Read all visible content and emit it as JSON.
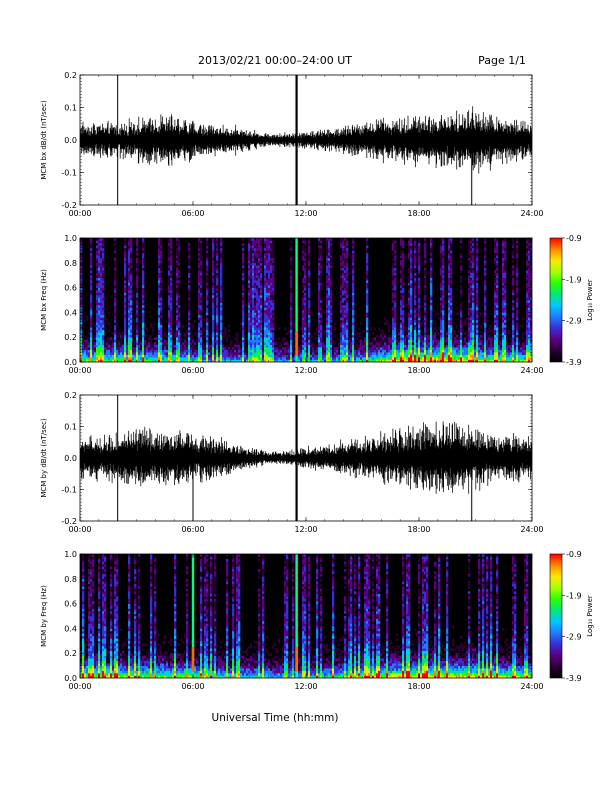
{
  "header": {
    "title": "2013/02/21  00:00–24:00 UT",
    "page": "Page 1/1"
  },
  "colors": {
    "trace": "#000000",
    "spectrogram_background": "#000000",
    "colormap": [
      "#000000",
      "#2a0033",
      "#5a0080",
      "#3a2dd6",
      "#1f7cff",
      "#00c8ff",
      "#00e87a",
      "#2bff00",
      "#a8ff00",
      "#ffe600",
      "#ff8800",
      "#ff0000"
    ]
  },
  "x_axis": {
    "tick_labels": [
      "00:00",
      "06:00",
      "12:00",
      "18:00",
      "24:00"
    ],
    "title": "Universal Time (hh:mm)"
  },
  "chart_data": [
    {
      "type": "line",
      "ylabel": "MCM bx dB/dt (nT/sec)",
      "xlim": [
        0,
        24
      ],
      "ylim": [
        -0.2,
        0.2
      ],
      "yticks": [
        "0.2",
        "0.1",
        "0.0",
        "-0.1",
        "-0.2"
      ],
      "envelope": {
        "x_hours": [
          0,
          1,
          2,
          3,
          4,
          5,
          6,
          7,
          8,
          9,
          10,
          11,
          12,
          13,
          14,
          15,
          16,
          17,
          18,
          19,
          20,
          21,
          22,
          23,
          24
        ],
        "amplitude": [
          0.05,
          0.05,
          0.045,
          0.06,
          0.07,
          0.07,
          0.055,
          0.045,
          0.04,
          0.03,
          0.02,
          0.02,
          0.025,
          0.03,
          0.04,
          0.05,
          0.06,
          0.06,
          0.07,
          0.075,
          0.08,
          0.09,
          0.07,
          0.06,
          0.05
        ]
      },
      "spikes": [
        {
          "x": 2.0,
          "ymin": -0.2,
          "ymax": 0.2
        },
        {
          "x": 11.5,
          "ymin": -0.2,
          "ymax": 0.2
        },
        {
          "x": 20.8,
          "ymin": -0.2,
          "ymax": 0.03
        }
      ]
    },
    {
      "type": "heatmap",
      "ylabel": "MCM bx Freq (Hz)",
      "xlim": [
        0,
        24
      ],
      "ylim": [
        0,
        1.0
      ],
      "yticks": [
        "1.0",
        "0.8",
        "0.6",
        "0.4",
        "0.2",
        "0.0"
      ],
      "colorbar": {
        "label": "Log₁₀ Power",
        "ticks": [
          "-0.9",
          "-1.9",
          "-2.9",
          "-3.9"
        ],
        "range": [
          -3.9,
          -0.9
        ]
      },
      "activity_by_hour": [
        0.5,
        0.45,
        0.5,
        0.45,
        0.45,
        0.45,
        0.4,
        0.35,
        0.35,
        0.3,
        0.3,
        0.3,
        0.3,
        0.3,
        0.35,
        0.4,
        0.5,
        0.6,
        0.65,
        0.65,
        0.6,
        0.55,
        0.5,
        0.45,
        0.45
      ],
      "impulse_lines": [
        11.5
      ]
    },
    {
      "type": "line",
      "ylabel": "MCM by dB/dt (nT/sec)",
      "xlim": [
        0,
        24
      ],
      "ylim": [
        -0.2,
        0.2
      ],
      "yticks": [
        "0.2",
        "0.1",
        "0.0",
        "-0.1",
        "-0.2"
      ],
      "envelope": {
        "x_hours": [
          0,
          1,
          2,
          3,
          4,
          5,
          6,
          7,
          8,
          9,
          10,
          11,
          12,
          13,
          14,
          15,
          16,
          17,
          18,
          19,
          20,
          21,
          22,
          23,
          24
        ],
        "amplitude": [
          0.06,
          0.06,
          0.07,
          0.08,
          0.08,
          0.08,
          0.07,
          0.06,
          0.05,
          0.03,
          0.02,
          0.02,
          0.03,
          0.04,
          0.05,
          0.06,
          0.07,
          0.08,
          0.09,
          0.1,
          0.1,
          0.09,
          0.07,
          0.07,
          0.06
        ]
      },
      "spikes": [
        {
          "x": 2.0,
          "ymin": -0.2,
          "ymax": 0.2
        },
        {
          "x": 6.0,
          "ymin": -0.2,
          "ymax": 0.0
        },
        {
          "x": 11.5,
          "ymin": -0.2,
          "ymax": 0.2
        },
        {
          "x": 20.8,
          "ymin": -0.2,
          "ymax": 0.05
        }
      ]
    },
    {
      "type": "heatmap",
      "ylabel": "MCM by Freq (Hz)",
      "xlim": [
        0,
        24
      ],
      "ylim": [
        0,
        1.0
      ],
      "yticks": [
        "1.0",
        "0.8",
        "0.6",
        "0.4",
        "0.2",
        "0.0"
      ],
      "colorbar": {
        "label": "Log₁₀ Power",
        "ticks": [
          "-0.9",
          "-1.9",
          "-2.9",
          "-3.9"
        ],
        "range": [
          -3.9,
          -0.9
        ]
      },
      "activity_by_hour": [
        0.55,
        0.55,
        0.55,
        0.5,
        0.5,
        0.5,
        0.5,
        0.45,
        0.4,
        0.4,
        0.35,
        0.35,
        0.35,
        0.4,
        0.45,
        0.5,
        0.55,
        0.6,
        0.6,
        0.6,
        0.6,
        0.55,
        0.55,
        0.5,
        0.5
      ],
      "impulse_lines": [
        6.0,
        11.5
      ]
    }
  ]
}
